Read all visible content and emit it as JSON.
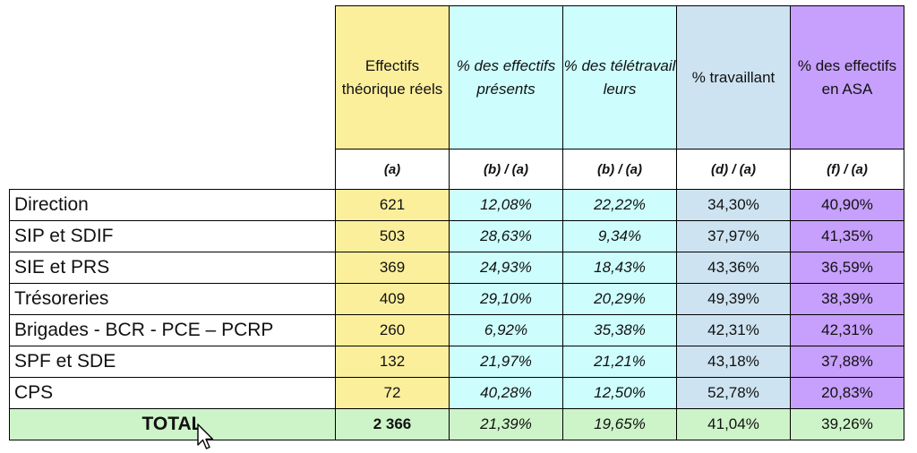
{
  "colors": {
    "yellow": "#fcef9c",
    "cyan": "#cdfdfd",
    "lightblue": "#cde3f1",
    "purple": "#c79ffd",
    "green": "#cdf4c8",
    "cursor": "pointer-arrow-icon"
  },
  "header": {
    "cols": [
      {
        "title": "Effectifs théorique réels",
        "formula": "(a)"
      },
      {
        "title": "% des effectifs présents",
        "formula": "(b) / (a)"
      },
      {
        "title": "% des télétravailleurs",
        "formula": "(b) / (a)"
      },
      {
        "title": "% travaillant",
        "formula": "(d) / (a)"
      },
      {
        "title": "% des effectifs en ASA",
        "formula": "(f) / (a)"
      }
    ]
  },
  "rows": [
    {
      "label": "Direction",
      "values": [
        "621",
        "12,08%",
        "22,22%",
        "34,30%",
        "40,90%"
      ]
    },
    {
      "label": "SIP et SDIF",
      "values": [
        "503",
        "28,63%",
        "9,34%",
        "37,97%",
        "41,35%"
      ]
    },
    {
      "label": "SIE et PRS",
      "values": [
        "369",
        "24,93%",
        "18,43%",
        "43,36%",
        "36,59%"
      ]
    },
    {
      "label": "Trésoreries",
      "values": [
        "409",
        "29,10%",
        "20,29%",
        "49,39%",
        "38,39%"
      ]
    },
    {
      "label": "Brigades - BCR - PCE – PCRP",
      "values": [
        "260",
        "6,92%",
        "35,38%",
        "42,31%",
        "42,31%"
      ]
    },
    {
      "label": "SPF et SDE",
      "values": [
        "132",
        "21,97%",
        "21,21%",
        "43,18%",
        "37,88%"
      ]
    },
    {
      "label": "CPS",
      "values": [
        "72",
        "40,28%",
        "12,50%",
        "52,78%",
        "20,83%"
      ]
    }
  ],
  "total": {
    "label": "TOTAL",
    "values": [
      "2 366",
      "21,39%",
      "19,65%",
      "41,04%",
      "39,26%"
    ]
  }
}
